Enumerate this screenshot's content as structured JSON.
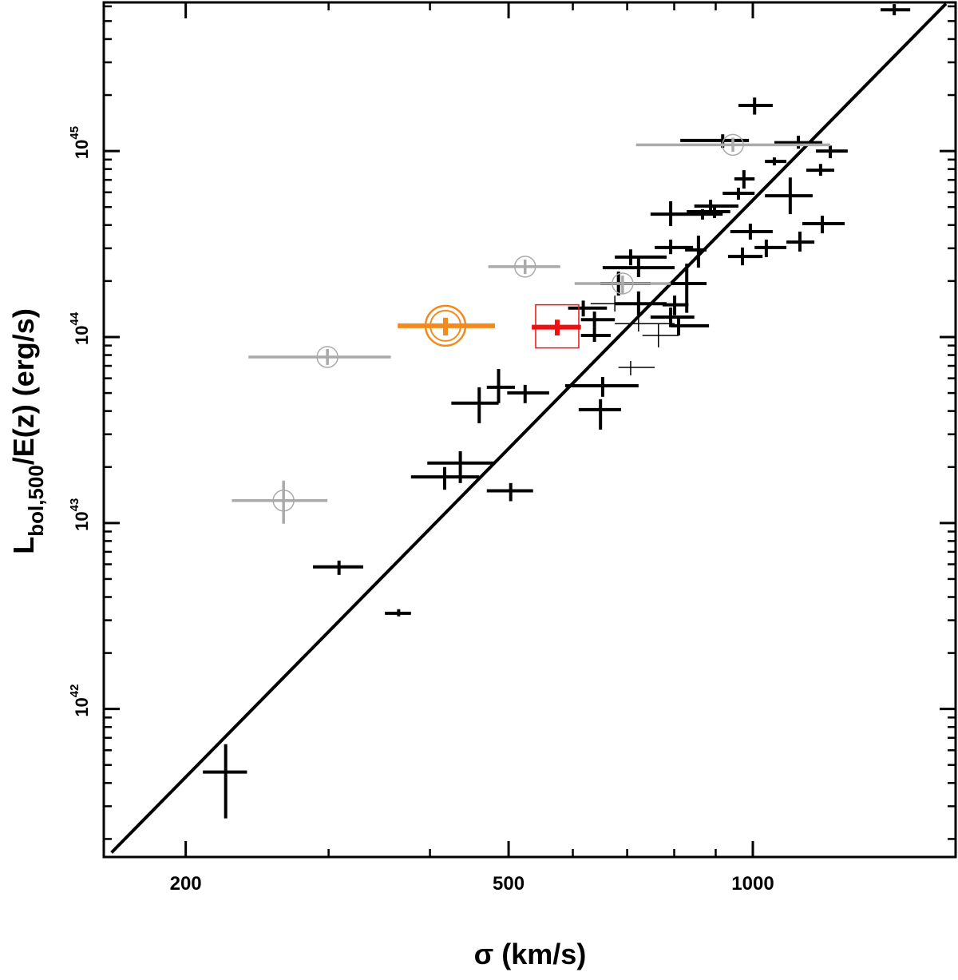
{
  "chart_data": {
    "type": "errorbar",
    "log_x": true,
    "log_y": true,
    "x_label": "σ (km/s)",
    "y_label": {
      "main": "L",
      "sub": "bol,500",
      "rest": "/E(z) (erg/s)"
    },
    "xlim": [
      158.5,
      1778
    ],
    "ylim": [
      1.6e+41,
      6.3e+45
    ],
    "xticks": [
      200,
      500,
      1000
    ],
    "xminor": [
      300,
      400,
      600,
      700,
      800,
      900
    ],
    "yticks": [
      {
        "value": 1e+42,
        "label": "10",
        "exponent": "42"
      },
      {
        "value": 1e+43,
        "label": "10",
        "exponent": "43"
      },
      {
        "value": 1e+44,
        "label": "10",
        "exponent": "44"
      },
      {
        "value": 1e+45,
        "label": "10",
        "exponent": "45"
      }
    ],
    "yminor": [
      2e+41,
      3e+41,
      4e+41,
      5e+41,
      6e+41,
      7e+41,
      8e+41,
      9e+41,
      2e+42,
      3e+42,
      4e+42,
      5e+42,
      6e+42,
      7e+42,
      8e+42,
      9e+42,
      2e+43,
      3e+43,
      4e+43,
      5e+43,
      6e+43,
      7e+43,
      8e+43,
      9e+43,
      2e+44,
      3e+44,
      4e+44,
      5e+44,
      6e+44,
      7e+44,
      8e+44,
      9e+44,
      2e+45,
      3e+45,
      4e+45,
      5e+45,
      6e+45
    ],
    "fit_line": {
      "color": "#000000",
      "x": [
        162,
        1730
      ],
      "y": [
        1.69e+41,
        6.2e+45
      ]
    },
    "series": [
      {
        "color": "#000000",
        "line_width": 4,
        "marker": "none",
        "x": [
          1494,
          1005,
          918,
          1138,
          1246,
          1063,
          1212,
          975,
          960,
          1112,
          887,
          897,
          867,
          792,
          1218,
          993,
          1143,
          1039,
          971,
          857,
          792,
          707,
          723,
          683,
          829,
          723,
          801,
          618,
          638,
          792,
          810,
          638,
          486,
          524,
          460,
          653,
          649,
          436,
          417,
          503,
          309,
          366,
          224
        ],
        "y": [
          5.75e+45,
          1.76e+45,
          1.14e+45,
          1.11e+45,
          1e+45,
          8.79e+44,
          7.89e+44,
          7.08e+44,
          5.93e+44,
          5.75e+44,
          5.06e+44,
          4.72e+44,
          4.58e+44,
          4.58e+44,
          4.07e+44,
          3.69e+44,
          3.24e+44,
          3.03e+44,
          2.71e+44,
          2.94e+44,
          3.03e+44,
          2.69e+44,
          2.36e+44,
          1.94e+44,
          1.94e+44,
          1.51e+44,
          1.49e+44,
          1.43e+44,
          1.24e+44,
          1.28e+44,
          1.15e+44,
          1.02e+44,
          5.37e+43,
          5.01e+43,
          4.41e+43,
          5.47e+43,
          4.07e+43,
          2.1e+43,
          1.77e+43,
          1.49e+43,
          5.81e+42,
          3.27e+42,
          4.58e+41
        ],
        "x_lo": [
          1437,
          960,
          814,
          1063,
          1196,
          1035,
          1164,
          949,
          918,
          1035,
          847,
          829,
          796,
          748,
          1151,
          938,
          1100,
          1005,
          932,
          825,
          757,
          676,
          653,
          649,
          788,
          676,
          774,
          592,
          614,
          748,
          792,
          614,
          470,
          498,
          425,
          587,
          610,
          397,
          379,
          470,
          287,
          352,
          210
        ],
        "x_hi": [
          1563,
          1058,
          989,
          1218,
          1309,
          1100,
          1260,
          1005,
          1005,
          1185,
          960,
          938,
          918,
          867,
          1298,
          1058,
          1191,
          1100,
          1028,
          877,
          844,
          783,
          801,
          748,
          877,
          783,
          833,
          661,
          676,
          847,
          883,
          668,
          509,
          561,
          486,
          723,
          688,
          481,
          460,
          536,
          331,
          379,
          238
        ],
        "y_lo": [
          5.37e+45,
          1.57e+45,
          1.04e+45,
          1.03e+45,
          9.15e+44,
          8.37e+44,
          7.36e+44,
          6.28e+44,
          5.47e+44,
          4.58e+44,
          4.62e+44,
          4.36e+44,
          4.28e+44,
          3.95e+44,
          3.61e+44,
          3.34e+44,
          2.88e+44,
          2.69e+44,
          2.43e+44,
          2.36e+44,
          2.79e+44,
          2.43e+44,
          2.1e+44,
          1.67e+44,
          1.35e+44,
          1.31e+44,
          1.31e+44,
          1.29e+44,
          1.13e+44,
          1.13e+44,
          1.02e+44,
          9.42e+43,
          4.41e+43,
          4.41e+43,
          3.44e+43,
          4.77e+43,
          3.18e+43,
          1.64e+43,
          1.51e+43,
          1.31e+43,
          5.26e+42,
          3.15e+42,
          2.58e+41
        ],
        "y_hi": [
          6.17e+45,
          1.94e+45,
          1.23e+45,
          1.21e+45,
          1.07e+45,
          9.24e+44,
          8.53e+44,
          7.89e+44,
          6.35e+44,
          7.21e+44,
          5.47e+44,
          5.11e+44,
          4.86e+44,
          5.37e+44,
          4.49e+44,
          4.07e+44,
          3.69e+44,
          3.34e+44,
          3.03e+44,
          3.51e+44,
          3.34e+44,
          2.96e+44,
          2.69e+44,
          2.25e+44,
          2.48e+44,
          1.76e+44,
          1.67e+44,
          1.57e+44,
          1.37e+44,
          1.44e+44,
          1.27e+44,
          1.13e+44,
          6.73e+43,
          5.53e+43,
          5.37e+43,
          6.1e+43,
          4.63e+43,
          2.43e+43,
          2e+43,
          1.64e+43,
          6.28e+42,
          3.44e+42,
          6.47e+41
        ]
      },
      {
        "color": "#000000",
        "line_width": 1.5,
        "marker": "none",
        "x": [
          676,
          723,
          765,
          707
        ],
        "y": [
          1.51e+44,
          1.18e+44,
          1.02e+44,
          6.87e+43
        ],
        "x_lo": [
          631,
          676,
          731,
          683
        ],
        "x_hi": [
          723,
          801,
          810,
          757
        ],
        "y_lo": [
          1.37e+44,
          1.07e+44,
          8.8e+43,
          6.22e+43
        ],
        "y_hi": [
          1.67e+44,
          1.31e+44,
          1.18e+44,
          7.43e+43
        ]
      },
      {
        "color": "#aaaaaa",
        "line_width": 3.5,
        "marker": "circle",
        "x": [
          945,
          524,
          691,
          299,
          264
        ],
        "y": [
          1.08e+45,
          2.39e+44,
          1.94e+44,
          7.81e+43,
          1.32e+43
        ],
        "x_lo": [
          718,
          472,
          603,
          239,
          228
        ],
        "x_hi": [
          1246,
          579,
          792,
          358,
          299
        ],
        "y_lo": [
          9.91e+44,
          2.18e+44,
          1.71e+44,
          7.08e+43,
          9.91e+42
        ],
        "y_hi": [
          1.18e+45,
          2.61e+44,
          2.14e+44,
          8.62e+43,
          1.69e+43
        ]
      },
      {
        "color": "#f28a1e",
        "line_width": 6,
        "marker": "big-circle",
        "x": [
          418
        ],
        "y": [
          1.15e+44
        ],
        "x_lo": [
          365
        ],
        "x_hi": [
          481
        ],
        "y_lo": [
          1.02e+44
        ],
        "y_hi": [
          1.27e+44
        ]
      },
      {
        "color": "#ee1111",
        "line_width": 6,
        "marker": "square",
        "x": [
          574
        ],
        "y": [
          1.13e+44
        ],
        "x_lo": [
          534
        ],
        "x_hi": [
          614
        ],
        "y_lo": [
          1.02e+44
        ],
        "y_hi": [
          1.24e+44
        ]
      }
    ]
  }
}
